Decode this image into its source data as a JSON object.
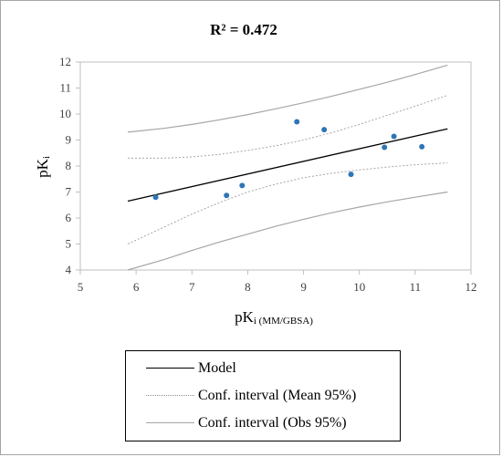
{
  "chart_data": {
    "type": "scatter",
    "title": "R² = 0.472",
    "xlabel": "pK",
    "xlabel_sub": "i (MM/GBSA)",
    "ylabel": "pK",
    "ylabel_sub": "i",
    "xlim": [
      5,
      12
    ],
    "ylim": [
      4,
      12
    ],
    "xticks": [
      "5",
      "6",
      "7",
      "8",
      "9",
      "10",
      "11",
      "12"
    ],
    "yticks": [
      "4",
      "5",
      "6",
      "7",
      "8",
      "9",
      "10",
      "11",
      "12"
    ],
    "grid": false,
    "legend_position": "bottom",
    "points": [
      {
        "x": 6.35,
        "y": 6.8
      },
      {
        "x": 7.62,
        "y": 6.87
      },
      {
        "x": 7.9,
        "y": 7.25
      },
      {
        "x": 8.88,
        "y": 9.7
      },
      {
        "x": 9.37,
        "y": 9.4
      },
      {
        "x": 9.85,
        "y": 7.68
      },
      {
        "x": 10.45,
        "y": 8.72
      },
      {
        "x": 10.62,
        "y": 9.14
      },
      {
        "x": 11.12,
        "y": 8.74
      }
    ],
    "series": [
      {
        "name": "Model",
        "x": [
          5.85,
          11.58
        ],
        "y": [
          6.65,
          9.43
        ]
      },
      {
        "name": "Conf. interval (Mean 95%)",
        "role": "upper",
        "x": [
          5.85,
          6.5,
          7.0,
          7.5,
          8.0,
          8.5,
          9.0,
          9.5,
          10.0,
          10.5,
          11.0,
          11.58
        ],
        "y": [
          8.3,
          8.3,
          8.35,
          8.45,
          8.6,
          8.78,
          9.0,
          9.28,
          9.6,
          9.95,
          10.3,
          10.72
        ]
      },
      {
        "name": "Conf. interval (Mean 95%)",
        "role": "lower",
        "x": [
          5.85,
          6.5,
          7.0,
          7.5,
          8.0,
          8.5,
          9.0,
          9.5,
          10.0,
          10.5,
          11.0,
          11.58
        ],
        "y": [
          5.0,
          5.65,
          6.15,
          6.6,
          7.0,
          7.3,
          7.55,
          7.72,
          7.85,
          7.96,
          8.05,
          8.12
        ]
      },
      {
        "name": "Conf. interval (Obs 95%)",
        "role": "upper",
        "x": [
          5.85,
          6.5,
          7.0,
          7.5,
          8.0,
          8.5,
          9.0,
          9.5,
          10.0,
          10.5,
          11.0,
          11.58
        ],
        "y": [
          9.3,
          9.45,
          9.6,
          9.78,
          9.98,
          10.2,
          10.43,
          10.68,
          10.95,
          11.22,
          11.52,
          11.88
        ]
      },
      {
        "name": "Conf. interval (Obs 95%)",
        "role": "lower",
        "x": [
          5.85,
          6.5,
          7.0,
          7.5,
          8.0,
          8.5,
          9.0,
          9.5,
          10.0,
          10.5,
          11.0,
          11.58
        ],
        "y": [
          4.0,
          4.4,
          4.75,
          5.08,
          5.38,
          5.68,
          5.95,
          6.2,
          6.42,
          6.62,
          6.8,
          7.0
        ]
      }
    ]
  },
  "legend": {
    "items": [
      {
        "label": "Model",
        "color": "#000000",
        "style": "solid"
      },
      {
        "label": "Conf. interval (Mean 95%)",
        "color": "#a6a6a6",
        "style": "dotted"
      },
      {
        "label": "Conf. interval (Obs 95%)",
        "color": "#a6a6a6",
        "style": "solid"
      }
    ]
  },
  "colors": {
    "points": "#2e75b6",
    "model": "#000000",
    "mean_ci": "#a6a6a6",
    "obs_ci": "#a6a6a6",
    "axis": "#bfbfbf"
  }
}
